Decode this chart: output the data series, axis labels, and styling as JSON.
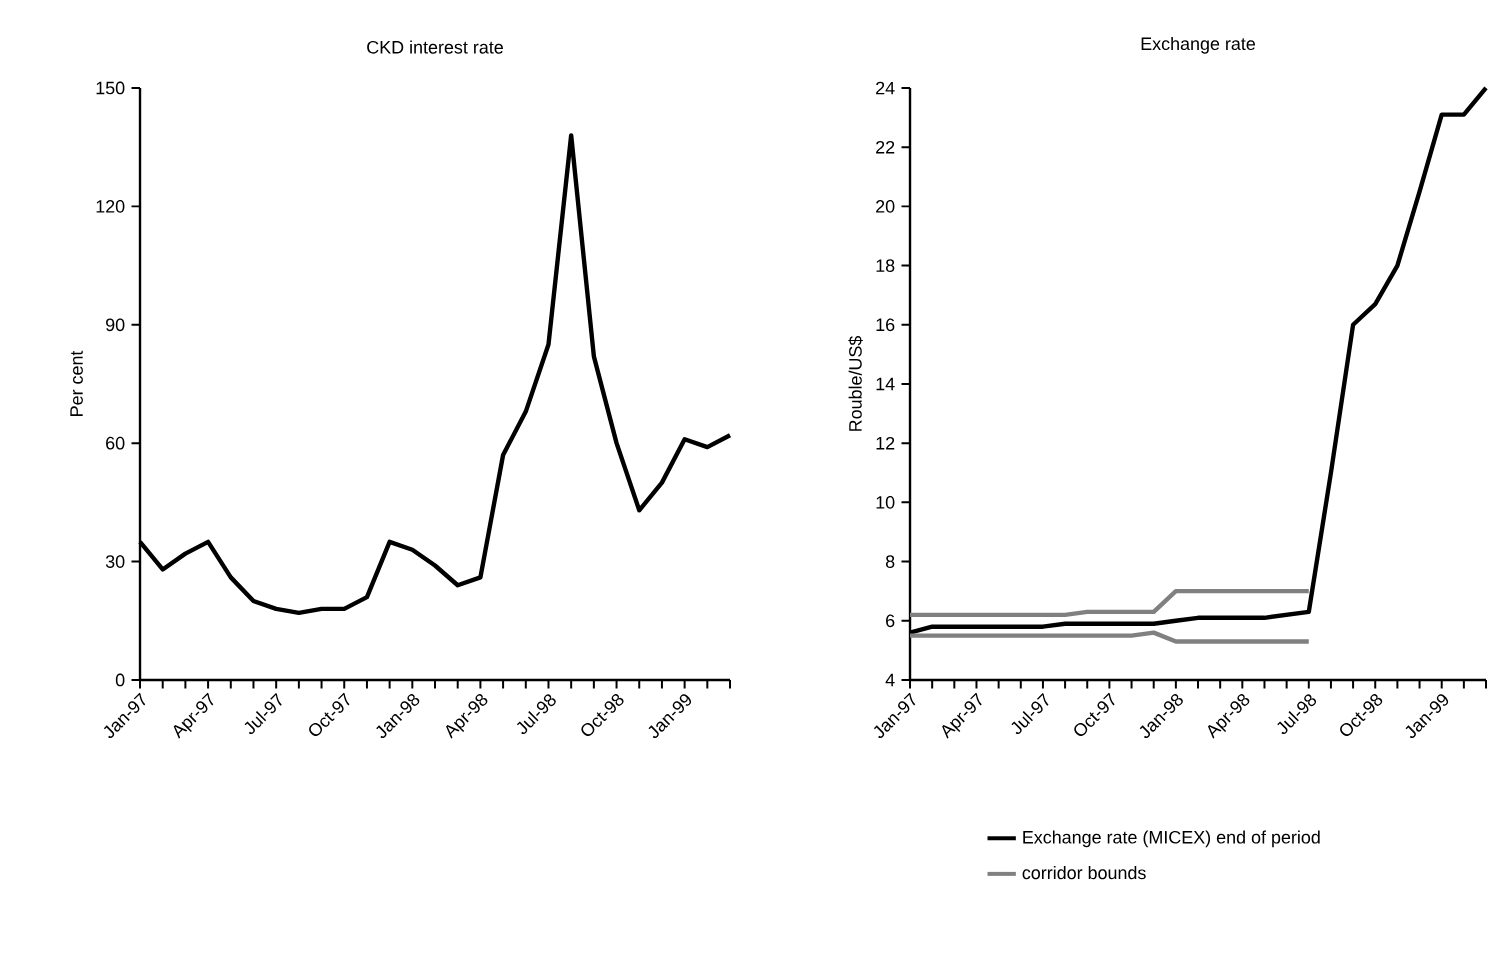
{
  "chart_data": [
    {
      "type": "line",
      "title": "CKD interest rate",
      "ylabel": "Per cent",
      "categories": [
        "Jan-97",
        null,
        null,
        "Apr-97",
        null,
        null,
        "Jul-97",
        null,
        null,
        "Oct-97",
        null,
        null,
        "Jan-98",
        null,
        null,
        "Apr-98",
        null,
        null,
        "Jul-98",
        null,
        null,
        "Oct-98",
        null,
        null,
        "Jan-99",
        null,
        null
      ],
      "values": [
        35,
        28,
        32,
        35,
        26,
        20,
        18,
        17,
        18,
        18,
        21,
        35,
        33,
        29,
        24,
        26,
        57,
        68,
        85,
        138,
        82,
        60,
        43,
        50,
        61,
        59,
        62
      ],
      "color": "#000000",
      "ylim": [
        0,
        150
      ],
      "yticks": [
        0,
        30,
        60,
        90,
        120,
        150
      ],
      "grid": false,
      "marker": "none",
      "line_style": "solid"
    },
    {
      "type": "line",
      "title": "Exchange rate",
      "ylabel": "Rouble/US$",
      "categories": [
        "Jan-97",
        null,
        null,
        "Apr-97",
        null,
        null,
        "Jul-97",
        null,
        null,
        "Oct-97",
        null,
        null,
        "Jan-98",
        null,
        null,
        "Apr-98",
        null,
        null,
        "Jul-98",
        null,
        null,
        "Oct-98",
        null,
        null,
        "Jan-99",
        null,
        null
      ],
      "series": [
        {
          "name": "Exchange rate (MICEX) end of period",
          "color": "#000000",
          "values": [
            5.6,
            5.8,
            5.8,
            5.8,
            5.8,
            5.8,
            5.8,
            5.9,
            5.9,
            5.9,
            5.9,
            5.9,
            6.0,
            6.1,
            6.1,
            6.1,
            6.1,
            6.2,
            6.3,
            11,
            16,
            16.7,
            18,
            20.5,
            23.1,
            23.1,
            24
          ]
        },
        {
          "name": "corridor bounds",
          "color": "#808080",
          "values": [
            6.2,
            6.2,
            6.2,
            6.2,
            6.2,
            6.2,
            6.2,
            6.2,
            6.3,
            6.3,
            6.3,
            6.3,
            7.0,
            7.0,
            7.0,
            7.0,
            7.0,
            7.0,
            7.0,
            null,
            null,
            null,
            null,
            null,
            null,
            null,
            null
          ]
        },
        {
          "color": "#808080",
          "values": [
            5.5,
            5.5,
            5.5,
            5.5,
            5.5,
            5.5,
            5.5,
            5.5,
            5.5,
            5.5,
            5.5,
            5.6,
            5.3,
            5.3,
            5.3,
            5.3,
            5.3,
            5.3,
            5.3,
            null,
            null,
            null,
            null,
            null,
            null,
            null,
            null
          ]
        }
      ],
      "ylim": [
        4,
        24
      ],
      "yticks": [
        4,
        6,
        8,
        10,
        12,
        14,
        16,
        18,
        20,
        22,
        24
      ],
      "grid": false,
      "legend": "bottom",
      "marker": "none",
      "line_style": "solid"
    }
  ]
}
